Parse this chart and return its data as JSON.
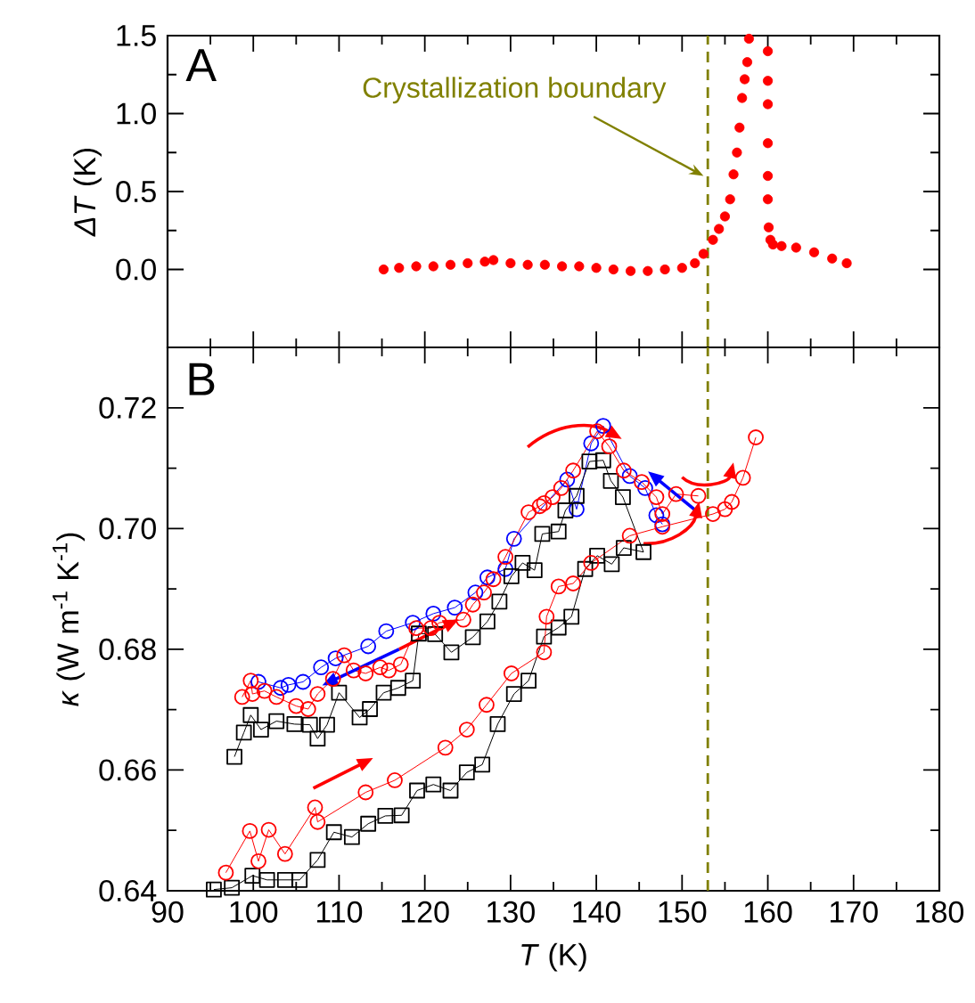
{
  "chart_data": [
    {
      "type": "scatter",
      "annotations": [
        "A"
      ],
      "ylabel": "*ΔT* (K)",
      "xlim": [
        90,
        180
      ],
      "xticks": [
        90,
        100,
        110,
        120,
        130,
        140,
        150,
        160,
        170,
        180
      ],
      "ylim": [
        -0.5,
        1.5
      ],
      "yticks": [
        {
          "value": 0,
          "label": "0.0"
        },
        0.5,
        {
          "value": 1,
          "label": "1.0"
        },
        1.5
      ],
      "tick_labels": "y",
      "ref_lines": [
        {
          "axis": "x",
          "value": 153,
          "label": "Crystallization boundary",
          "color": "#808000",
          "line_style": "dashed"
        }
      ],
      "series": [
        {
          "color": "#ff0000",
          "marker": "circle",
          "x": [
            115.2,
            117,
            119,
            121,
            123,
            125,
            127,
            128,
            130,
            132,
            134,
            136,
            138,
            140,
            142,
            144,
            146,
            148,
            150,
            151.5,
            152.5,
            153.6,
            154.3,
            155.0,
            155.6,
            156.0,
            156.4,
            156.7,
            157.0,
            157.3,
            157.6,
            157.8,
            160.0,
            160.0,
            160.0,
            160.0,
            160.0,
            160.0,
            160.1,
            160.3,
            160.6,
            161.6,
            163.3,
            165.4,
            167.5,
            169.2
          ],
          "values": [
            0.0,
            0.01,
            0.02,
            0.02,
            0.03,
            0.04,
            0.05,
            0.06,
            0.04,
            0.03,
            0.03,
            0.02,
            0.02,
            0.01,
            0.0,
            -0.01,
            -0.01,
            0.0,
            0.01,
            0.04,
            0.1,
            0.19,
            0.26,
            0.34,
            0.45,
            0.61,
            0.75,
            0.91,
            1.1,
            1.22,
            1.33,
            1.48,
            1.4,
            1.21,
            1.06,
            0.81,
            0.6,
            0.45,
            0.27,
            0.19,
            0.16,
            0.15,
            0.14,
            0.11,
            0.07,
            0.04
          ]
        }
      ]
    },
    {
      "type": "line",
      "annotations": [
        "B"
      ],
      "xlabel": "*T* (K)",
      "ylabel": "*κ* (W m$^{-1}$ K$^{-1}$)",
      "xlim": [
        90,
        180
      ],
      "xticks": [
        90,
        100,
        110,
        120,
        130,
        140,
        150,
        160,
        170,
        180
      ],
      "ylim": [
        0.64,
        0.73
      ],
      "yticks": [
        0.64,
        0.66,
        0.68,
        {
          "value": 0.7,
          "label": "0.70"
        },
        0.72
      ],
      "ref_lines": [
        {
          "axis": "x",
          "value": 153,
          "color": "#808000",
          "line_style": "dashed"
        }
      ],
      "series": [
        {
          "color": "#0000ff",
          "marker": "circle",
          "line_style": "solid",
          "x": [
            100.6,
            103.2,
            104.1,
            105.8,
            107.9,
            109.6,
            113.4,
            115.5,
            118.6,
            121.0,
            123.5,
            125.9,
            127.3,
            129.4,
            130.4,
            136.6,
            137.7,
            139.4,
            140.8,
            143.9,
            145.7,
            147.0,
            147.7
          ],
          "values": [
            0.6746,
            0.6736,
            0.6741,
            0.6746,
            0.677,
            0.6785,
            0.6805,
            0.683,
            0.6844,
            0.6859,
            0.6869,
            0.6894,
            0.6919,
            0.6933,
            0.6983,
            0.7081,
            0.7032,
            0.7141,
            0.717,
            0.7087,
            0.7067,
            0.7022,
            0.7007
          ]
        },
        {
          "color": "#000000",
          "marker": "square",
          "line_style": "solid",
          "x": [
            95.4,
            97.5,
            99.9,
            101.6,
            103.7,
            105.4,
            107.5,
            109.4,
            111.5,
            113.4,
            115.4,
            117.3,
            119.1,
            121.0,
            123.0,
            124.9,
            126.7,
            128.5,
            130.4,
            132.1,
            133.9,
            135.6,
            137.1,
            138.7,
            140.1,
            141.8,
            143.2,
            145.5,
            143.1,
            141.7,
            140.8,
            139.2,
            137.7,
            136.4,
            135.6,
            133.7,
            132.8,
            131.4,
            130.1,
            128.7,
            127.3,
            125.6,
            123.1,
            121.2,
            119.3,
            118.6,
            116.9,
            115.2,
            113.6,
            112.4,
            110.0,
            108.6,
            107.5,
            106.6,
            104.8,
            102.7,
            100.9,
            99.7,
            98.9,
            97.8
          ],
          "values": [
            0.6402,
            0.6405,
            0.6425,
            0.6418,
            0.6418,
            0.6418,
            0.6451,
            0.6497,
            0.6489,
            0.6511,
            0.6524,
            0.6525,
            0.6566,
            0.6576,
            0.6566,
            0.6596,
            0.6609,
            0.6676,
            0.6726,
            0.6748,
            0.6821,
            0.6836,
            0.6854,
            0.6933,
            0.6955,
            0.6941,
            0.6968,
            0.6961,
            0.7052,
            0.7079,
            0.7113,
            0.7111,
            0.7054,
            0.703,
            0.6995,
            0.6991,
            0.6931,
            0.6943,
            0.6921,
            0.6879,
            0.6846,
            0.682,
            0.6795,
            0.6825,
            0.6826,
            0.6748,
            0.6736,
            0.6728,
            0.6701,
            0.6687,
            0.6728,
            0.6675,
            0.6652,
            0.6675,
            0.6676,
            0.6681,
            0.6667,
            0.6691,
            0.6662,
            0.6622
          ]
        },
        {
          "color": "#ff0000",
          "marker": "circle",
          "line_style": "solid",
          "x": [
            96.8,
            99.6,
            100.6,
            101.8,
            103.7,
            107.2,
            107.5,
            113.1,
            116.5,
            122.4,
            124.9,
            127.2,
            130.1,
            133.9,
            134.2,
            135.6,
            137.3,
            139.4,
            143.9,
            147.7,
            153.6,
            155.0,
            155.8,
            157.1,
            158.6
          ],
          "values": [
            0.643,
            0.6499,
            0.6449,
            0.6501,
            0.6461,
            0.6538,
            0.6514,
            0.6563,
            0.6583,
            0.6637,
            0.6667,
            0.6708,
            0.676,
            0.6795,
            0.6854,
            0.6904,
            0.6909,
            0.6943,
            0.6988,
            0.7003,
            0.7024,
            0.7032,
            0.7044,
            0.7084,
            0.7151
          ]
        },
        {
          "color": "#ff0000",
          "marker": "circle",
          "line_style": "solid",
          "x": [
            151.9,
            149.3,
            147.7,
            147.0,
            145.3,
            143.2,
            141.5,
            140.1,
            137.3,
            135.9,
            134.9,
            133.9,
            133.4,
            132.1,
            129.4,
            128.0,
            126.9,
            125.6,
            124.5,
            121.7,
            120.7,
            119.0,
            117.2,
            115.8,
            114.8,
            113.1,
            111.7,
            110.6,
            109.3,
            107.5,
            106.4,
            105.0,
            102.7,
            101.3,
            99.9,
            99.7,
            98.7
          ],
          "values": [
            0.7054,
            0.7057,
            0.7024,
            0.7052,
            0.7077,
            0.7096,
            0.7136,
            0.7161,
            0.7096,
            0.7067,
            0.7052,
            0.7042,
            0.7037,
            0.7027,
            0.6953,
            0.6916,
            0.6894,
            0.6874,
            0.6849,
            0.6844,
            0.6835,
            0.6835,
            0.6775,
            0.6765,
            0.677,
            0.676,
            0.6765,
            0.679,
            0.6751,
            0.6726,
            0.6701,
            0.6706,
            0.6721,
            0.6731,
            0.6726,
            0.6748,
            0.6721
          ]
        }
      ]
    }
  ]
}
